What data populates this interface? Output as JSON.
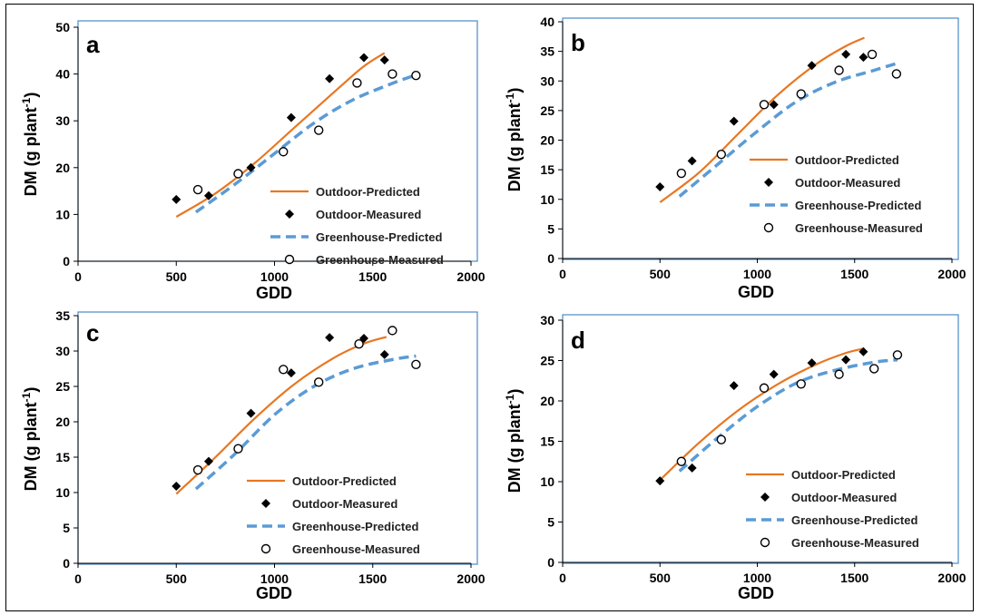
{
  "legend": {
    "outdoor_predicted": "Outdoor-Predicted",
    "outdoor_measured": "Outdoor-Measured",
    "greenhouse_predicted": "Greenhouse-Predicted",
    "greenhouse_measured": "Greenhouse-Measured"
  },
  "colors": {
    "outdoor_predicted": "#E87722",
    "greenhouse_predicted": "#5B9BD5",
    "plot_border": "#4A8AC8",
    "measured_marker": "#000000"
  },
  "chart_data": [
    {
      "panel": "a",
      "type": "scatter",
      "xlabel": "GDD",
      "ylabel_main": "DM (g plant",
      "ylabel_sup": "-1",
      "ylabel_tail": ")",
      "xlim": [
        0,
        2000
      ],
      "ylim": [
        0,
        50
      ],
      "xticks": [
        0,
        500,
        1000,
        1500,
        2000
      ],
      "yticks": [
        0,
        10,
        20,
        30,
        40,
        50
      ],
      "legend_position": "bottom-right",
      "series": [
        {
          "key": "outdoor_predicted",
          "kind": "line",
          "points": [
            [
              500,
              9.5
            ],
            [
              700,
              14.5
            ],
            [
              900,
              21
            ],
            [
              1100,
              28.5
            ],
            [
              1300,
              36
            ],
            [
              1450,
              41.5
            ],
            [
              1560,
              44.5
            ]
          ]
        },
        {
          "key": "outdoor_measured",
          "kind": "diamond",
          "points": [
            [
              500,
              13.2
            ],
            [
              665,
              14
            ],
            [
              880,
              20
            ],
            [
              1085,
              30.7
            ],
            [
              1280,
              39
            ],
            [
              1455,
              43.5
            ],
            [
              1560,
              43
            ]
          ]
        },
        {
          "key": "greenhouse_predicted",
          "kind": "dash",
          "points": [
            [
              600,
              10.5
            ],
            [
              800,
              16.5
            ],
            [
              1000,
              23
            ],
            [
              1200,
              29.5
            ],
            [
              1400,
              34.5
            ],
            [
              1600,
              38
            ],
            [
              1720,
              39.8
            ]
          ]
        },
        {
          "key": "greenhouse_measured",
          "kind": "circle",
          "points": [
            [
              610,
              15.3
            ],
            [
              815,
              18.7
            ],
            [
              1045,
              23.4
            ],
            [
              1225,
              28
            ],
            [
              1420,
              38.1
            ],
            [
              1600,
              40
            ],
            [
              1720,
              39.7
            ]
          ]
        }
      ]
    },
    {
      "panel": "b",
      "type": "scatter",
      "xlabel": "GDD",
      "ylabel_main": "DM (g plant",
      "ylabel_sup": "-1",
      "ylabel_tail": ")",
      "xlim": [
        0,
        2000
      ],
      "ylim": [
        0,
        40
      ],
      "xticks": [
        0,
        500,
        1000,
        1500,
        2000
      ],
      "yticks": [
        0,
        5,
        10,
        15,
        20,
        25,
        30,
        35,
        40
      ],
      "legend_position": "bottom-right",
      "series": [
        {
          "key": "outdoor_predicted",
          "kind": "line",
          "points": [
            [
              500,
              9.5
            ],
            [
              700,
              14.5
            ],
            [
              900,
              21
            ],
            [
              1100,
              27.5
            ],
            [
              1300,
              32.8
            ],
            [
              1450,
              35.8
            ],
            [
              1550,
              37.3
            ]
          ]
        },
        {
          "key": "outdoor_measured",
          "kind": "diamond",
          "points": [
            [
              500,
              12.1
            ],
            [
              665,
              16.5
            ],
            [
              880,
              23.2
            ],
            [
              1085,
              26
            ],
            [
              1280,
              32.6
            ],
            [
              1455,
              34.5
            ],
            [
              1545,
              34
            ]
          ]
        },
        {
          "key": "greenhouse_predicted",
          "kind": "dash",
          "points": [
            [
              600,
              10.5
            ],
            [
              800,
              16
            ],
            [
              1000,
              21.5
            ],
            [
              1200,
              26.5
            ],
            [
              1400,
              29.8
            ],
            [
              1600,
              31.8
            ],
            [
              1720,
              33
            ]
          ]
        },
        {
          "key": "greenhouse_measured",
          "kind": "circle",
          "points": [
            [
              610,
              14.4
            ],
            [
              815,
              17.6
            ],
            [
              1035,
              26
            ],
            [
              1225,
              27.8
            ],
            [
              1420,
              31.8
            ],
            [
              1590,
              34.5
            ],
            [
              1715,
              31.2
            ]
          ]
        }
      ]
    },
    {
      "panel": "c",
      "type": "scatter",
      "xlabel": "GDD",
      "ylabel_main": "DM (g plant",
      "ylabel_sup": "-1",
      "ylabel_tail": ")",
      "xlim": [
        0,
        2000
      ],
      "ylim": [
        0,
        35
      ],
      "xticks": [
        0,
        500,
        1000,
        1500,
        2000
      ],
      "yticks": [
        0,
        5,
        10,
        15,
        20,
        25,
        30,
        35
      ],
      "legend_position": "bottom-right",
      "series": [
        {
          "key": "outdoor_predicted",
          "kind": "line",
          "points": [
            [
              500,
              9.8
            ],
            [
              700,
              15
            ],
            [
              900,
              20.5
            ],
            [
              1100,
              25.3
            ],
            [
              1300,
              29
            ],
            [
              1450,
              31
            ],
            [
              1570,
              32
            ]
          ]
        },
        {
          "key": "outdoor_measured",
          "kind": "diamond",
          "points": [
            [
              500,
              10.9
            ],
            [
              665,
              14.4
            ],
            [
              880,
              21.2
            ],
            [
              1085,
              26.9
            ],
            [
              1280,
              31.9
            ],
            [
              1455,
              31.8
            ],
            [
              1560,
              29.5
            ]
          ]
        },
        {
          "key": "greenhouse_predicted",
          "kind": "dash",
          "points": [
            [
              600,
              10.5
            ],
            [
              800,
              15.5
            ],
            [
              1000,
              21
            ],
            [
              1200,
              25
            ],
            [
              1400,
              27.5
            ],
            [
              1600,
              28.8
            ],
            [
              1720,
              29.3
            ]
          ]
        },
        {
          "key": "greenhouse_measured",
          "kind": "circle",
          "points": [
            [
              610,
              13.2
            ],
            [
              815,
              16.2
            ],
            [
              1045,
              27.4
            ],
            [
              1225,
              25.6
            ],
            [
              1430,
              31
            ],
            [
              1600,
              32.9
            ],
            [
              1720,
              28.1
            ]
          ]
        }
      ]
    },
    {
      "panel": "d",
      "type": "scatter",
      "xlabel": "GDD",
      "ylabel_main": "DM (g plant",
      "ylabel_sup": "-1",
      "ylabel_tail": ")",
      "xlim": [
        0,
        2000
      ],
      "ylim": [
        0,
        30
      ],
      "xticks": [
        0,
        500,
        1000,
        1500,
        2000
      ],
      "yticks": [
        0,
        5,
        10,
        15,
        20,
        25,
        30
      ],
      "legend_position": "bottom-right",
      "series": [
        {
          "key": "outdoor_predicted",
          "kind": "line",
          "points": [
            [
              500,
              10.2
            ],
            [
              700,
              14.8
            ],
            [
              900,
              18.8
            ],
            [
              1100,
              22
            ],
            [
              1300,
              24.5
            ],
            [
              1450,
              25.9
            ],
            [
              1550,
              26.5
            ]
          ]
        },
        {
          "key": "outdoor_measured",
          "kind": "diamond",
          "points": [
            [
              500,
              10.1
            ],
            [
              665,
              11.7
            ],
            [
              880,
              21.9
            ],
            [
              1085,
              23.3
            ],
            [
              1280,
              24.7
            ],
            [
              1455,
              25.1
            ],
            [
              1545,
              26.1
            ]
          ]
        },
        {
          "key": "greenhouse_predicted",
          "kind": "dash",
          "points": [
            [
              600,
              11.3
            ],
            [
              800,
              15.5
            ],
            [
              1000,
              19.3
            ],
            [
              1200,
              22.2
            ],
            [
              1400,
              23.8
            ],
            [
              1600,
              24.8
            ],
            [
              1720,
              25.1
            ]
          ]
        },
        {
          "key": "greenhouse_measured",
          "kind": "circle",
          "points": [
            [
              610,
              12.5
            ],
            [
              815,
              15.2
            ],
            [
              1035,
              21.6
            ],
            [
              1225,
              22.1
            ],
            [
              1420,
              23.3
            ],
            [
              1600,
              24
            ],
            [
              1720,
              25.7
            ]
          ]
        }
      ]
    }
  ]
}
